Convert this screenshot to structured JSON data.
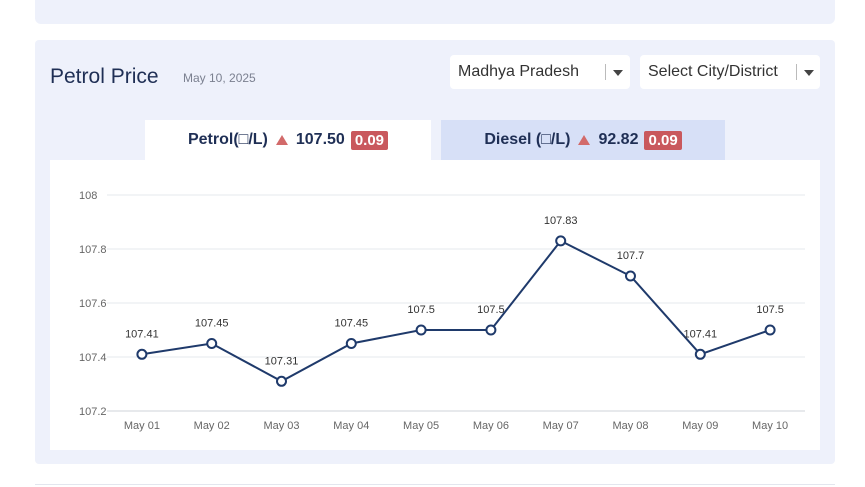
{
  "header": {
    "title": "Petrol Price",
    "date": "May 10, 2025"
  },
  "filters": {
    "state_value": "Madhya Pradesh",
    "city_placeholder": "Select City/District"
  },
  "tabs": {
    "petrol": {
      "label": "Petrol(□/L)",
      "price": "107.50",
      "change": "0.09",
      "trend_icon": "up-triangle-icon"
    },
    "diesel": {
      "label": "Diesel (□/L)",
      "price": "92.82",
      "change": "0.09",
      "trend_icon": "up-triangle-icon"
    }
  },
  "colors": {
    "line": "#1f3a6b",
    "badge": "#c9585d",
    "trend_up": "#d26a6a",
    "active_tab": "#ffffff",
    "inactive_tab": "#d7e0f7"
  },
  "chart_data": {
    "type": "line",
    "categories": [
      "May 01",
      "May 02",
      "May 03",
      "May 04",
      "May 05",
      "May 06",
      "May 07",
      "May 08",
      "May 09",
      "May 10"
    ],
    "series": [
      {
        "values": [
          107.41,
          107.45,
          107.31,
          107.45,
          107.5,
          107.5,
          107.83,
          107.7,
          107.41,
          107.5
        ]
      }
    ],
    "data_labels": [
      "107.41",
      "107.45",
      "107.31",
      "107.45",
      "107.5",
      "107.5",
      "107.83",
      "107.7",
      "107.41",
      "107.5"
    ],
    "yticks": [
      "108",
      "107.8",
      "107.6",
      "107.4",
      "107.2"
    ],
    "ylim": [
      107.2,
      108
    ],
    "grid": true,
    "legend": "none"
  }
}
